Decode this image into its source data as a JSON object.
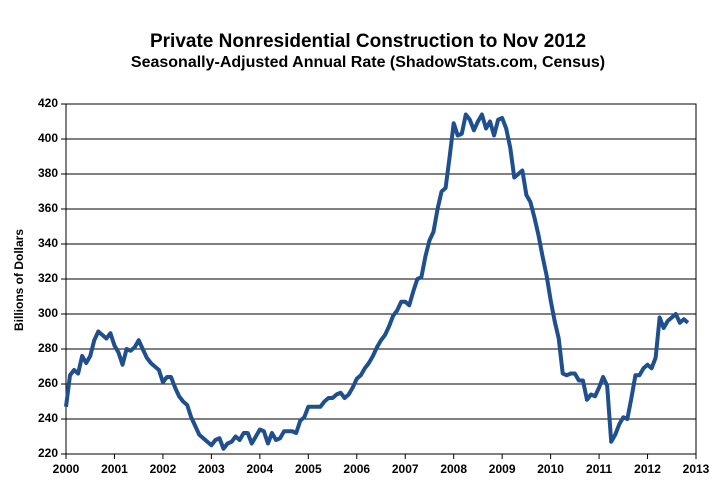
{
  "chart_data": {
    "type": "line",
    "title": "Private Nonresidential Construction to Nov 2012",
    "subtitle": "Seasonally-Adjusted Annual Rate (ShadowStats.com, Census)",
    "y_label": "Billions of Dollars",
    "xlim": [
      2000,
      2013
    ],
    "xticks": [
      2000,
      2001,
      2002,
      2003,
      2004,
      2005,
      2006,
      2007,
      2008,
      2009,
      2010,
      2011,
      2012,
      2013
    ],
    "ylim": [
      220,
      420
    ],
    "yticks": [
      220,
      240,
      260,
      280,
      300,
      320,
      340,
      360,
      380,
      400,
      420
    ],
    "grid": true,
    "x": [
      2000,
      2000.083,
      2000.167,
      2000.25,
      2000.333,
      2000.417,
      2000.5,
      2000.583,
      2000.667,
      2000.75,
      2000.833,
      2000.917,
      2001,
      2001.083,
      2001.167,
      2001.25,
      2001.333,
      2001.417,
      2001.5,
      2001.583,
      2001.667,
      2001.75,
      2001.833,
      2001.917,
      2002,
      2002.083,
      2002.167,
      2002.25,
      2002.333,
      2002.417,
      2002.5,
      2002.583,
      2002.667,
      2002.75,
      2002.833,
      2002.917,
      2003,
      2003.083,
      2003.167,
      2003.25,
      2003.333,
      2003.417,
      2003.5,
      2003.583,
      2003.667,
      2003.75,
      2003.833,
      2003.917,
      2004,
      2004.083,
      2004.167,
      2004.25,
      2004.333,
      2004.417,
      2004.5,
      2004.583,
      2004.667,
      2004.75,
      2004.833,
      2004.917,
      2005,
      2005.083,
      2005.167,
      2005.25,
      2005.333,
      2005.417,
      2005.5,
      2005.583,
      2005.667,
      2005.75,
      2005.833,
      2005.917,
      2006,
      2006.083,
      2006.167,
      2006.25,
      2006.333,
      2006.417,
      2006.5,
      2006.583,
      2006.667,
      2006.75,
      2006.833,
      2006.917,
      2007,
      2007.083,
      2007.167,
      2007.25,
      2007.333,
      2007.417,
      2007.5,
      2007.583,
      2007.667,
      2007.75,
      2007.833,
      2007.917,
      2008,
      2008.083,
      2008.167,
      2008.25,
      2008.333,
      2008.417,
      2008.5,
      2008.583,
      2008.667,
      2008.75,
      2008.833,
      2008.917,
      2009,
      2009.083,
      2009.167,
      2009.25,
      2009.333,
      2009.417,
      2009.5,
      2009.583,
      2009.667,
      2009.75,
      2009.833,
      2009.917,
      2010,
      2010.083,
      2010.167,
      2010.25,
      2010.333,
      2010.417,
      2010.5,
      2010.583,
      2010.667,
      2010.75,
      2010.833,
      2010.917,
      2011,
      2011.083,
      2011.167,
      2011.25,
      2011.333,
      2011.417,
      2011.5,
      2011.583,
      2011.667,
      2011.75,
      2011.833,
      2011.917,
      2012,
      2012.083,
      2012.167,
      2012.25,
      2012.333,
      2012.417,
      2012.5,
      2012.583,
      2012.667,
      2012.75,
      2012.833
    ],
    "series": [
      {
        "name": "Private Nonresidential Construction",
        "color": "#1f4f8f",
        "values": [
          247,
          265,
          268,
          266,
          276,
          272,
          276,
          285,
          290,
          288,
          286,
          289,
          282,
          278,
          271,
          280,
          279,
          281,
          285,
          280,
          275,
          272,
          270,
          268,
          261,
          264,
          264,
          258,
          253,
          250,
          248,
          241,
          236,
          231,
          229,
          227,
          225,
          228,
          229,
          223,
          226,
          227,
          230,
          228,
          232,
          232,
          226,
          230,
          234,
          233,
          226,
          232,
          228,
          229,
          233,
          233,
          233,
          232,
          239,
          241,
          247,
          247,
          247,
          247,
          250,
          252,
          252,
          254,
          255,
          252,
          254,
          258,
          263,
          265,
          269,
          272,
          276,
          281,
          285,
          288,
          293,
          299,
          302,
          307,
          307,
          305,
          313,
          320,
          321,
          333,
          342,
          347,
          360,
          370,
          372,
          390,
          409,
          402,
          403,
          414,
          411,
          405,
          410,
          414,
          406,
          410,
          402,
          411,
          412,
          406,
          395,
          378,
          380,
          382,
          368,
          364,
          355,
          345,
          333,
          322,
          308,
          296,
          286,
          266,
          265,
          266,
          266,
          262,
          262,
          251,
          254,
          253,
          258,
          264,
          259,
          227,
          231,
          237,
          241,
          240,
          252,
          265,
          265,
          269,
          271,
          269,
          275,
          298,
          292,
          296,
          298,
          300,
          295,
          297,
          295
        ]
      }
    ]
  }
}
